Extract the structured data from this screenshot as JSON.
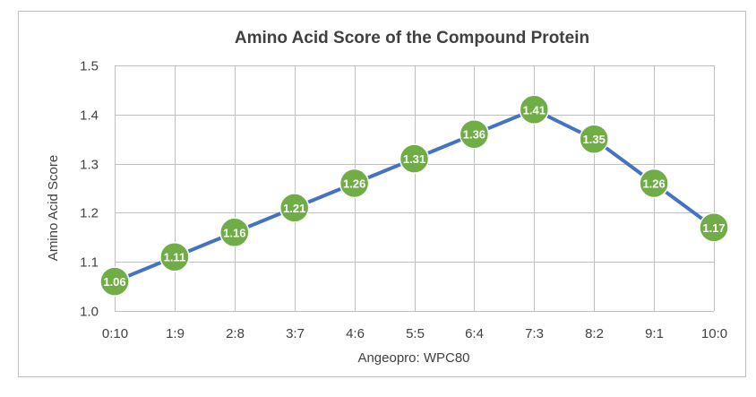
{
  "chart_data": {
    "type": "line",
    "title": "Amino Acid Score of the Compound Protein",
    "xlabel": "Angeopro: WPC80",
    "ylabel": "Amino Acid Score",
    "categories": [
      "0:10",
      "1:9",
      "2:8",
      "3:7",
      "4:6",
      "5:5",
      "6:4",
      "7:3",
      "8:2",
      "9:1",
      "10:0"
    ],
    "series": [
      {
        "values": [
          1.06,
          1.11,
          1.16,
          1.21,
          1.26,
          1.31,
          1.36,
          1.41,
          1.35,
          1.26,
          1.17
        ],
        "data_labels": [
          "1.06",
          "1.11",
          "1.16",
          "1.21",
          "1.26",
          "1.31",
          "1.36",
          "1.41",
          "1.35",
          "1.26",
          "1.17"
        ]
      }
    ],
    "ylim": [
      1.0,
      1.5
    ],
    "yticks": [
      1.0,
      1.1,
      1.2,
      1.3,
      1.4,
      1.5
    ],
    "ytick_labels": [
      "1.0",
      "1.1",
      "1.2",
      "1.3",
      "1.4",
      "1.5"
    ],
    "grid": true,
    "legend": "none",
    "colors": {
      "line": "#4472C4",
      "marker": "#70AD47",
      "marker_border": "#ffffff",
      "grid": "#BFBFBF",
      "frame_border": "#BFBFBF",
      "text": "#404040"
    }
  }
}
